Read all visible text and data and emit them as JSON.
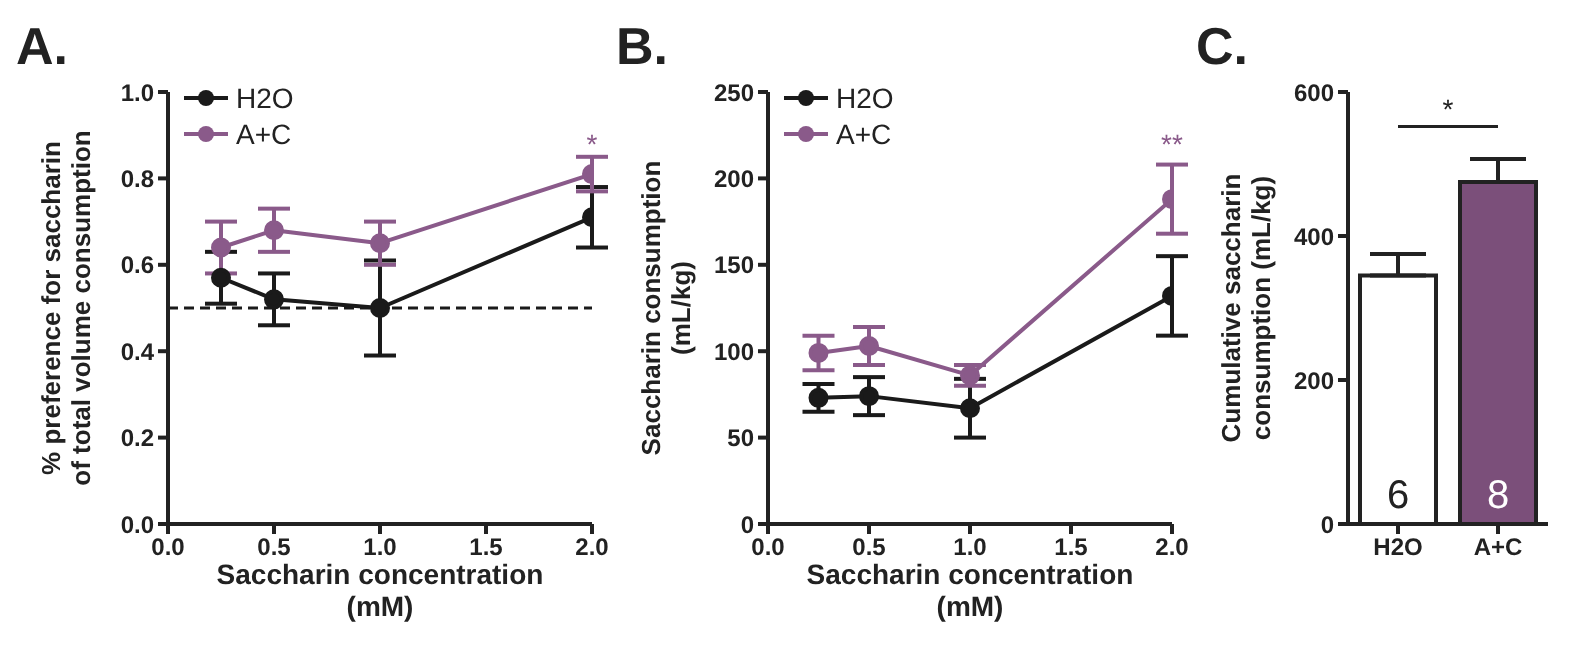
{
  "chart_data": [
    {
      "type": "line",
      "title": "A.",
      "xlabel": "Saccharin concentration\n(mM)",
      "ylabel": "% preference for saccharin\nof total volume consumption",
      "x": [
        0.25,
        0.5,
        1,
        2
      ],
      "series": [
        {
          "name": "H2O",
          "color": "#1a1a1a",
          "values": [
            0.57,
            0.52,
            0.5,
            0.71
          ],
          "errors": [
            0.06,
            0.06,
            0.11,
            0.07
          ]
        },
        {
          "name": "A+C",
          "color": "#8a5a8a",
          "values": [
            0.64,
            0.68,
            0.65,
            0.81
          ],
          "errors": [
            0.06,
            0.05,
            0.05,
            0.04
          ]
        }
      ],
      "xlim": [
        0,
        2
      ],
      "xticks": [
        {
          "value": 0,
          "label": "0.0"
        },
        {
          "value": 0.5,
          "label": "0.5"
        },
        {
          "value": 1,
          "label": "1.0"
        },
        {
          "value": 1.5,
          "label": "1.5"
        },
        {
          "value": 2,
          "label": "2.0"
        }
      ],
      "ylim": [
        0,
        1
      ],
      "yticks": [
        {
          "value": 0,
          "label": "0.0"
        },
        {
          "value": 0.2,
          "label": "0.2"
        },
        {
          "value": 0.4,
          "label": "0.4"
        },
        {
          "value": 0.6,
          "label": "0.6"
        },
        {
          "value": 0.8,
          "label": "0.8"
        },
        {
          "value": 1,
          "label": "1.0"
        }
      ],
      "ref_lines": [
        {
          "axis": "y",
          "value": 0.5,
          "line_style": "dashed",
          "color": "#1a1a1a"
        }
      ],
      "annotations": [
        "*"
      ],
      "grid": false,
      "legend": "top left",
      "marker": "circle",
      "line_style": "solid"
    },
    {
      "type": "line",
      "title": "B.",
      "xlabel": "Saccharin concentration\n(mM)",
      "ylabel": "Saccharin consumption\n(mL/kg)",
      "x": [
        0.25,
        0.5,
        1,
        2
      ],
      "series": [
        {
          "name": "H2O",
          "color": "#1a1a1a",
          "values": [
            73,
            74,
            67,
            132
          ],
          "errors": [
            8,
            11,
            17,
            23
          ]
        },
        {
          "name": "A+C",
          "color": "#8a5a8a",
          "values": [
            99,
            103,
            86,
            188
          ],
          "errors": [
            10,
            11,
            6,
            20
          ]
        }
      ],
      "xlim": [
        0,
        2
      ],
      "xticks": [
        {
          "value": 0,
          "label": "0.0"
        },
        {
          "value": 0.5,
          "label": "0.5"
        },
        {
          "value": 1,
          "label": "1.0"
        },
        {
          "value": 1.5,
          "label": "1.5"
        },
        {
          "value": 2,
          "label": "2.0"
        }
      ],
      "ylim": [
        0,
        250
      ],
      "yticks": [
        0,
        50,
        100,
        150,
        200,
        250
      ],
      "annotations": [
        "**"
      ],
      "grid": false,
      "legend": "top left",
      "marker": "circle",
      "line_style": "solid"
    },
    {
      "type": "bar",
      "title": "C.",
      "ylabel": "Cumulative saccharin\nconsumption (mL/kg)",
      "categories": [
        "H2O",
        "A+C"
      ],
      "values": [
        345,
        475
      ],
      "errors": [
        30,
        32
      ],
      "colors": [
        "#ffffff",
        "#7b4f7a"
      ],
      "ylim": [
        0,
        600
      ],
      "yticks": [
        0,
        200,
        400,
        600
      ],
      "annotations": [
        "*",
        "6",
        "8"
      ],
      "grid": false,
      "legend": false
    }
  ]
}
